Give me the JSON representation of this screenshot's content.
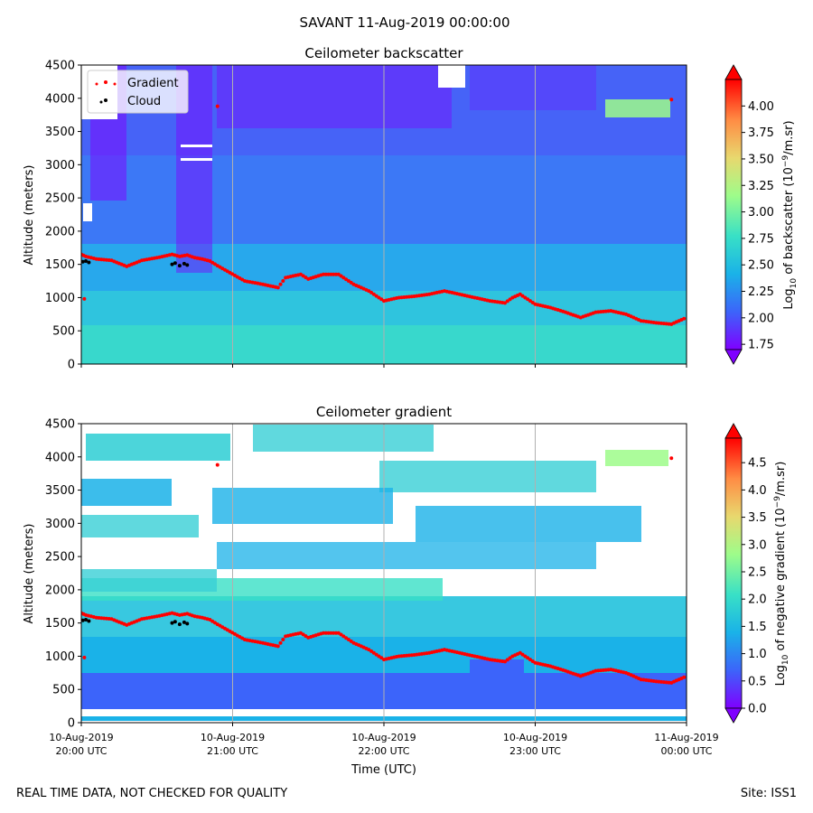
{
  "suptitle": "SAVANT 11-Aug-2019 00:00:00",
  "footer_left": "REAL TIME DATA, NOT CHECKED FOR QUALITY",
  "footer_right": "Site: ISS1",
  "colors": {
    "gradient_marker": "#ff0000",
    "cloud_marker": "#000000",
    "colormap": [
      "#7f00ff",
      "#3c64fa",
      "#1ab2e8",
      "#38e0c6",
      "#9efc8a",
      "#e8d86e",
      "#ff8c44",
      "#ff0000"
    ]
  },
  "chart_data": [
    {
      "type": "heatmap",
      "title": "Ceilometer backscatter",
      "ylabel": "Altitude (meters)",
      "ylim": [
        0,
        4500
      ],
      "yticks": [
        "0",
        "500",
        "1000",
        "1500",
        "2000",
        "2500",
        "3000",
        "3500",
        "4000",
        "4500"
      ],
      "xlim": [
        "10-Aug-2019 20:00 UTC",
        "11-Aug-2019 00:00 UTC"
      ],
      "grid": "vertical lines at hourly ticks",
      "colorbar": {
        "label_parts": [
          "Log",
          "10",
          " of backscatter (10",
          "−9",
          "/m.sr)"
        ],
        "range": [
          1.7,
          4.25
        ],
        "ticks": [
          "1.75",
          "2.00",
          "2.25",
          "2.50",
          "2.75",
          "3.00",
          "3.25",
          "3.50",
          "3.75",
          "4.00"
        ],
        "extend": "both"
      },
      "legend": {
        "placement": "upper-left",
        "entries": [
          "Gradient",
          "Cloud"
        ]
      }
    },
    {
      "type": "heatmap",
      "title": "Ceilometer gradient",
      "ylabel": "Altitude (meters)",
      "xlabel": "Time (UTC)",
      "ylim": [
        0,
        4500
      ],
      "yticks": [
        "0",
        "500",
        "1000",
        "1500",
        "2000",
        "2500",
        "3000",
        "3500",
        "4000",
        "4500"
      ],
      "xticks": [
        {
          "line1": "10-Aug-2019",
          "line2": "20:00 UTC"
        },
        {
          "line1": "10-Aug-2019",
          "line2": "21:00 UTC"
        },
        {
          "line1": "10-Aug-2019",
          "line2": "22:00 UTC"
        },
        {
          "line1": "10-Aug-2019",
          "line2": "23:00 UTC"
        },
        {
          "line1": "11-Aug-2019",
          "line2": "00:00 UTC"
        }
      ],
      "colorbar": {
        "label_parts": [
          "Log",
          "10",
          " of negative gradient (10",
          "−9",
          "/m.sr)"
        ],
        "range": [
          0,
          4.95
        ],
        "ticks": [
          "0.0",
          "0.5",
          "1.0",
          "1.5",
          "2.0",
          "2.5",
          "3.0",
          "3.5",
          "4.0",
          "4.5"
        ],
        "extend": "both"
      }
    }
  ],
  "gradient_series": {
    "name": "Gradient",
    "time_hours": [
      0.0,
      0.03,
      0.1,
      0.2,
      0.3,
      0.4,
      0.5,
      0.6,
      0.65,
      0.7,
      0.75,
      0.8,
      0.85,
      0.9,
      1.08,
      1.2,
      1.3,
      1.35,
      1.45,
      1.5,
      1.6,
      1.7,
      1.8,
      1.9,
      2.0,
      2.1,
      2.2,
      2.3,
      2.4,
      2.5,
      2.6,
      2.7,
      2.8,
      2.85,
      2.9,
      3.0,
      3.1,
      3.2,
      3.3,
      3.4,
      3.5,
      3.6,
      3.7,
      3.8,
      3.9,
      4.0
    ],
    "altitude_m": [
      1650,
      1620,
      1580,
      1560,
      1470,
      1560,
      1600,
      1650,
      1620,
      1640,
      1600,
      1580,
      1550,
      1480,
      1250,
      1200,
      1150,
      1300,
      1350,
      1280,
      1350,
      1350,
      1200,
      1100,
      950,
      1000,
      1020,
      1050,
      1100,
      1050,
      1000,
      950,
      920,
      1000,
      1050,
      900,
      850,
      780,
      700,
      780,
      800,
      750,
      650,
      620,
      600,
      700
    ]
  },
  "cloud_series": {
    "name": "Cloud",
    "time_hours": [
      0.01,
      0.03,
      0.05,
      0.6,
      0.62,
      0.65,
      0.68,
      0.7
    ],
    "altitude_m": [
      1540,
      1550,
      1530,
      1500,
      1520,
      1480,
      1510,
      1490
    ]
  }
}
